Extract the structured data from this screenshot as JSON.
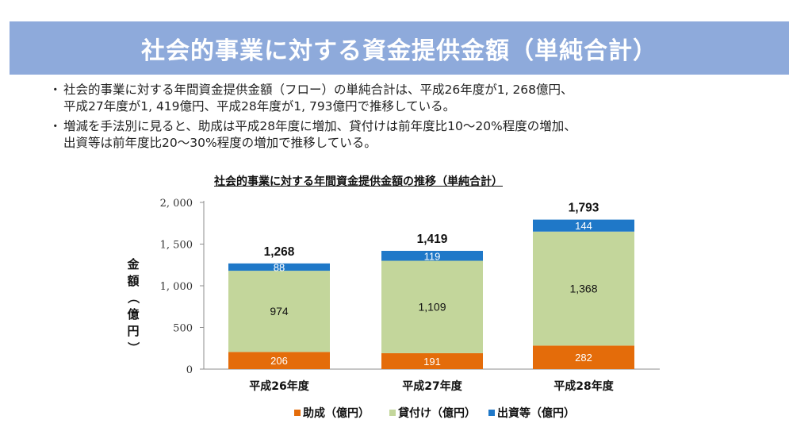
{
  "header": {
    "title": "社会的事業に対する資金提供金額（単純合計）"
  },
  "bullets": [
    {
      "mark": "・",
      "lines": [
        "社会的事業に対する年間資金提供金額（フロー）の単純合計は、平成26年度が1, 268億円、",
        "平成27年度が1, 419億円、平成28年度が1, 793億円で推移している。"
      ]
    },
    {
      "mark": "・",
      "lines": [
        "増減を手法別に見ると、助成は平成28年度に増加、貸付けは前年度比10～20%程度の増加、",
        "出資等は前年度比20～30%程度の増加で推移している。"
      ]
    }
  ],
  "chart_data": {
    "type": "bar",
    "stacked": true,
    "title": "社会的事業に対する年間資金提供金額の推移（単純合計）",
    "categories": [
      "平成26年度",
      "平成27年度",
      "平成28年度"
    ],
    "series": [
      {
        "name": "助成（億円）",
        "color": "#e46c0a",
        "values": [
          206,
          191,
          282
        ],
        "labelColor": "#ffffff"
      },
      {
        "name": "貸付け（億円）",
        "color": "#c3d69b",
        "values": [
          974,
          1109,
          1368
        ],
        "labelColor": "#111111"
      },
      {
        "name": "出資等（億円）",
        "color": "#1f78c8",
        "values": [
          88,
          119,
          144
        ],
        "labelColor": "#ffffff"
      }
    ],
    "totals": [
      "1,268",
      "1,419",
      "1,793"
    ],
    "series_labels": [
      [
        "206",
        "191",
        "282"
      ],
      [
        "974",
        "1,109",
        "1,368"
      ],
      [
        "88",
        "119",
        "144"
      ]
    ],
    "ylabel": "金額（億円）",
    "ylabel_chars": [
      "金",
      "額",
      "（",
      "億",
      "円",
      "）"
    ],
    "ylim": [
      0,
      2000
    ],
    "yticks": [
      0,
      500,
      1000,
      1500,
      2000
    ],
    "ytick_labels": [
      "0",
      "500",
      "1, 000",
      "1, 500",
      "2, 000"
    ],
    "legend_position": "bottom"
  }
}
